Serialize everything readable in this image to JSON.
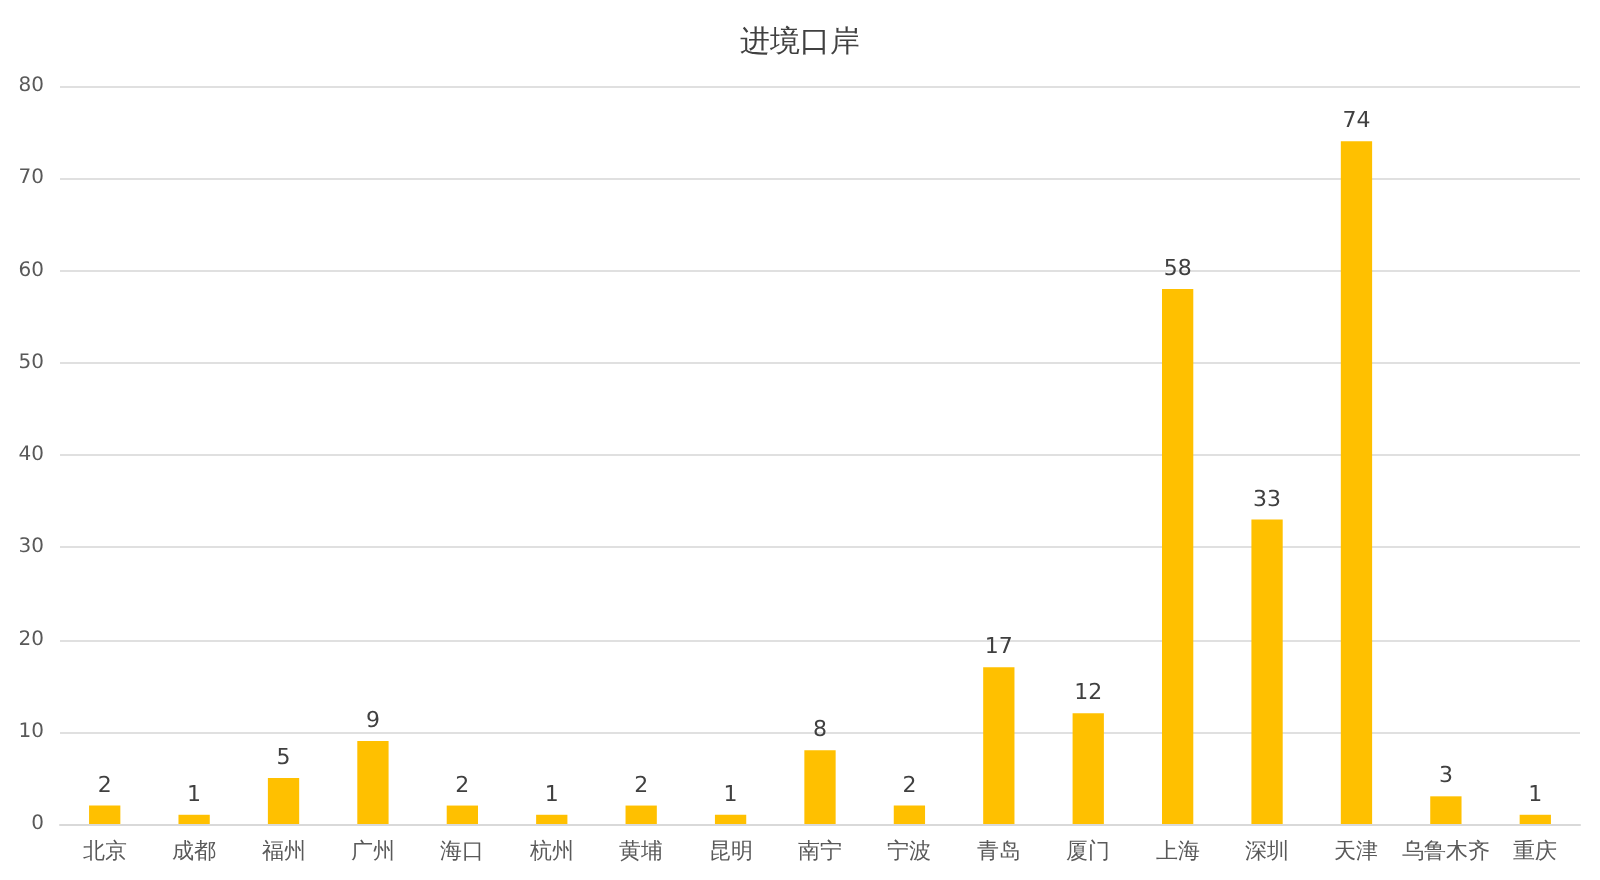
{
  "chart_data": {
    "type": "bar",
    "title": "进境口岸",
    "categories": [
      "北京",
      "成都",
      "福州",
      "广州",
      "海口",
      "杭州",
      "黄埔",
      "昆明",
      "南宁",
      "宁波",
      "青岛",
      "厦门",
      "上海",
      "深圳",
      "天津",
      "乌鲁木齐",
      "重庆"
    ],
    "values": [
      2,
      1,
      5,
      9,
      2,
      1,
      2,
      1,
      8,
      2,
      17,
      12,
      58,
      33,
      74,
      3,
      1
    ],
    "color": "#ffc000",
    "ylim": [
      0,
      80
    ],
    "yticks": [
      0,
      10,
      20,
      30,
      40,
      50,
      60,
      70,
      80
    ],
    "grid": "y",
    "data_labels": true
  }
}
